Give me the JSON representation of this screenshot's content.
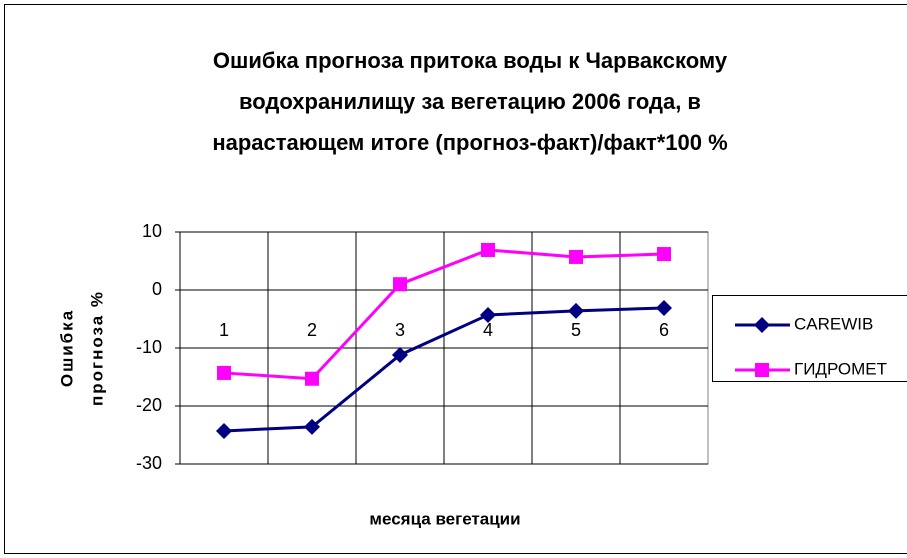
{
  "chart_data": {
    "type": "line",
    "title": [
      "Ошибка прогноза притока воды к Чарвакскому",
      "водохранилищу за вегетацию 2006 года, в",
      "нарастающем итоге (прогноз-факт)/факт*100 %"
    ],
    "x_label": "месяца вегетации",
    "y_label": [
      "Ошибка",
      "прогноза %"
    ],
    "categories": [
      "1",
      "2",
      "3",
      "4",
      "5",
      "6"
    ],
    "series": [
      {
        "name": "CAREWIB",
        "color": "#000080",
        "marker": "diamond",
        "values": [
          -24.3,
          -23.6,
          -11.2,
          -4.3,
          -3.6,
          -3.1
        ]
      },
      {
        "name": "ГИДРОМЕТ",
        "color": "#ff00ff",
        "marker": "square",
        "values": [
          -14.3,
          -15.3,
          1.0,
          6.9,
          5.7,
          6.2
        ]
      }
    ],
    "ylim": [
      -30,
      10
    ],
    "yticks": [
      -30,
      -20,
      -10,
      0,
      10
    ],
    "grid": true,
    "legend": "right"
  }
}
